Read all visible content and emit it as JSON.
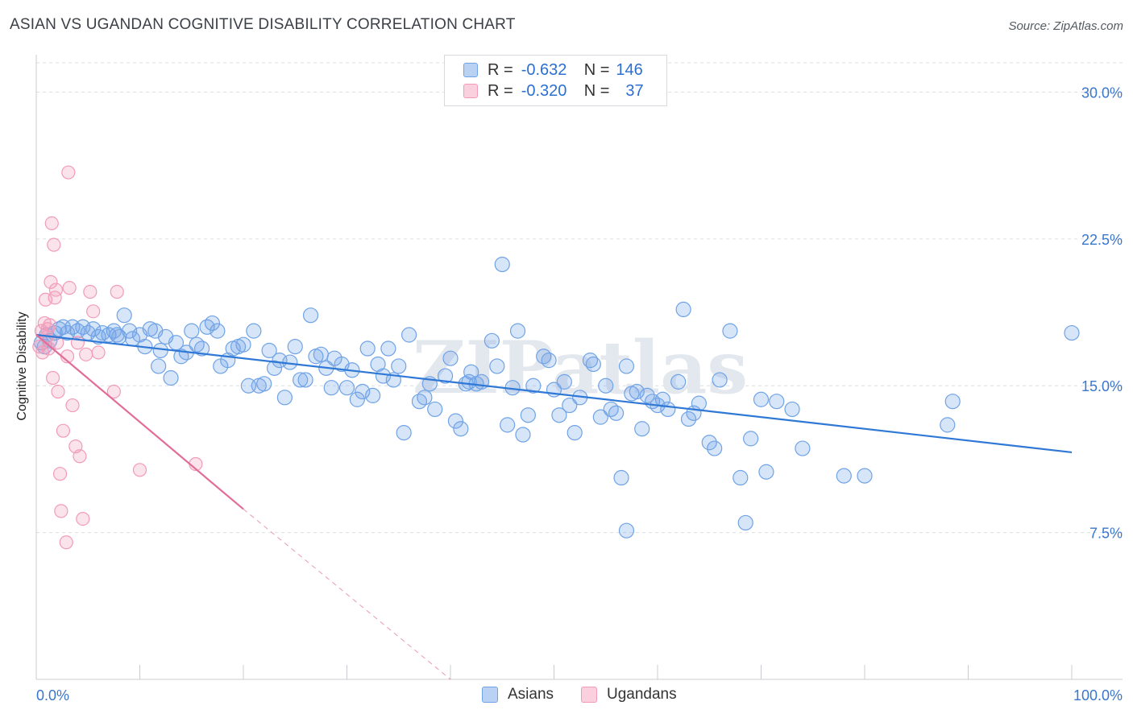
{
  "title": "ASIAN VS UGANDAN COGNITIVE DISABILITY CORRELATION CHART",
  "source": "Source: ZipAtlas.com",
  "watermark": "ZIPatlas",
  "colors": {
    "asian": "#6fa3e6",
    "asian_line": "#2f78d6",
    "ugandan": "#f29bb8",
    "ugandan_line": "#e26d98",
    "tick_text": "#3a76cc"
  },
  "legend_top": {
    "rows": [
      {
        "r_label": "R =",
        "r_value": "-0.632",
        "n_label": "N =",
        "n_value": "146"
      },
      {
        "r_label": "R =",
        "r_value": "-0.320",
        "n_label": "N =",
        "n_value": "37"
      }
    ]
  },
  "chart_data": {
    "type": "scatter",
    "title": "ASIAN VS UGANDAN COGNITIVE DISABILITY CORRELATION CHART",
    "xlabel": "",
    "ylabel": "Cognitive Disability",
    "xlim": [
      0,
      100
    ],
    "ylim": [
      0,
      31.5
    ],
    "x_tick_labels": [
      "0.0%",
      "100.0%"
    ],
    "y_ticks": [
      7.5,
      15.0,
      22.5,
      30.0
    ],
    "y_tick_labels": [
      "7.5%",
      "15.0%",
      "22.5%",
      "30.0%"
    ],
    "grid": "horizontal dashed",
    "legend_position": "bottom-center",
    "series": [
      {
        "name": "Asians",
        "stats": {
          "R": -0.632,
          "N": 146
        },
        "trend": {
          "x": [
            0,
            100
          ],
          "y": [
            17.6,
            11.6
          ]
        },
        "points": [
          [
            0.5,
            17.2
          ],
          [
            0.8,
            17.0
          ],
          [
            1.0,
            17.6
          ],
          [
            1.3,
            17.3
          ],
          [
            1.8,
            17.7
          ],
          [
            2.2,
            17.9
          ],
          [
            2.6,
            18.0
          ],
          [
            3.0,
            17.7
          ],
          [
            3.5,
            18.0
          ],
          [
            4.0,
            17.8
          ],
          [
            4.5,
            18.0
          ],
          [
            5.0,
            17.7
          ],
          [
            5.5,
            17.9
          ],
          [
            6.0,
            17.5
          ],
          [
            6.4,
            17.7
          ],
          [
            7.0,
            17.6
          ],
          [
            7.5,
            17.8
          ],
          [
            7.8,
            17.6
          ],
          [
            8.0,
            17.5
          ],
          [
            8.5,
            18.6
          ],
          [
            9.0,
            17.8
          ],
          [
            9.3,
            17.4
          ],
          [
            10.0,
            17.6
          ],
          [
            10.5,
            17.0
          ],
          [
            11.0,
            17.9
          ],
          [
            11.5,
            17.8
          ],
          [
            12.0,
            16.8
          ],
          [
            11.8,
            16.0
          ],
          [
            12.5,
            17.5
          ],
          [
            13.0,
            15.4
          ],
          [
            13.5,
            17.2
          ],
          [
            14.0,
            16.5
          ],
          [
            14.5,
            16.7
          ],
          [
            15.0,
            17.8
          ],
          [
            15.5,
            17.1
          ],
          [
            16.0,
            16.9
          ],
          [
            16.5,
            18.0
          ],
          [
            17.0,
            18.2
          ],
          [
            17.5,
            17.8
          ],
          [
            17.8,
            16.0
          ],
          [
            18.5,
            16.3
          ],
          [
            19.0,
            16.9
          ],
          [
            19.5,
            17.0
          ],
          [
            20.0,
            17.1
          ],
          [
            20.5,
            15.0
          ],
          [
            21.0,
            17.8
          ],
          [
            21.5,
            15.0
          ],
          [
            22.0,
            15.1
          ],
          [
            22.5,
            16.8
          ],
          [
            23.0,
            15.9
          ],
          [
            23.5,
            16.3
          ],
          [
            24.0,
            14.4
          ],
          [
            24.5,
            16.2
          ],
          [
            25.0,
            17.0
          ],
          [
            25.5,
            15.3
          ],
          [
            26.0,
            15.3
          ],
          [
            26.5,
            18.6
          ],
          [
            27.0,
            16.5
          ],
          [
            27.5,
            16.6
          ],
          [
            28.0,
            15.9
          ],
          [
            28.5,
            14.9
          ],
          [
            28.8,
            16.4
          ],
          [
            29.5,
            16.1
          ],
          [
            30.0,
            14.9
          ],
          [
            30.5,
            15.8
          ],
          [
            31.0,
            14.3
          ],
          [
            31.5,
            14.7
          ],
          [
            32.0,
            16.9
          ],
          [
            32.5,
            14.5
          ],
          [
            33.0,
            16.1
          ],
          [
            33.5,
            15.5
          ],
          [
            34.0,
            16.9
          ],
          [
            34.5,
            15.3
          ],
          [
            35.0,
            16.0
          ],
          [
            35.5,
            12.6
          ],
          [
            36.0,
            17.6
          ],
          [
            37.0,
            14.2
          ],
          [
            37.5,
            14.4
          ],
          [
            38.0,
            15.1
          ],
          [
            38.5,
            13.8
          ],
          [
            39.5,
            15.5
          ],
          [
            40.0,
            16.4
          ],
          [
            40.5,
            13.2
          ],
          [
            41.0,
            12.8
          ],
          [
            41.5,
            15.1
          ],
          [
            42.0,
            15.7
          ],
          [
            42.5,
            15.1
          ],
          [
            43.0,
            15.2
          ],
          [
            44.0,
            17.3
          ],
          [
            44.5,
            16.0
          ],
          [
            45.5,
            13.0
          ],
          [
            46.0,
            14.9
          ],
          [
            46.5,
            17.8
          ],
          [
            47.0,
            12.5
          ],
          [
            47.5,
            13.5
          ],
          [
            48.0,
            15.0
          ],
          [
            49.0,
            16.5
          ],
          [
            49.5,
            16.3
          ],
          [
            50.0,
            14.8
          ],
          [
            50.5,
            13.5
          ],
          [
            51.0,
            15.2
          ],
          [
            52.0,
            12.6
          ],
          [
            52.5,
            14.4
          ],
          [
            53.5,
            16.3
          ],
          [
            53.8,
            16.1
          ],
          [
            54.5,
            13.4
          ],
          [
            55.0,
            15.0
          ],
          [
            55.5,
            13.8
          ],
          [
            56.0,
            13.6
          ],
          [
            57.0,
            16.0
          ],
          [
            57.5,
            14.6
          ],
          [
            58.5,
            12.8
          ],
          [
            59.0,
            14.5
          ],
          [
            59.5,
            14.2
          ],
          [
            60.0,
            14.0
          ],
          [
            61.0,
            13.8
          ],
          [
            62.0,
            15.2
          ],
          [
            62.5,
            18.9
          ],
          [
            63.0,
            13.3
          ],
          [
            63.5,
            13.6
          ],
          [
            64.0,
            14.1
          ],
          [
            65.0,
            12.1
          ],
          [
            66.0,
            15.3
          ],
          [
            67.0,
            17.8
          ],
          [
            68.0,
            10.3
          ],
          [
            69.0,
            12.3
          ],
          [
            70.0,
            14.3
          ],
          [
            70.5,
            10.6
          ],
          [
            71.5,
            14.2
          ],
          [
            73.0,
            13.8
          ],
          [
            74.0,
            11.8
          ],
          [
            78.0,
            10.4
          ],
          [
            80.0,
            10.4
          ],
          [
            88.0,
            13.0
          ],
          [
            88.5,
            14.2
          ],
          [
            100.0,
            17.7
          ],
          [
            45.0,
            21.2
          ],
          [
            56.5,
            10.3
          ],
          [
            57.0,
            7.6
          ],
          [
            68.5,
            8.0
          ],
          [
            65.5,
            11.8
          ],
          [
            60.5,
            14.3
          ],
          [
            51.5,
            14.0
          ],
          [
            58.0,
            14.7
          ],
          [
            41.8,
            15.2
          ]
        ]
      },
      {
        "name": "Ugandans",
        "stats": {
          "R": -0.32,
          "N": 37
        },
        "trend": {
          "x": [
            0,
            20
          ],
          "y": [
            17.6,
            8.7
          ]
        },
        "trend_extension": {
          "x": [
            20,
            40
          ],
          "y": [
            8.7,
            0
          ]
        },
        "points": [
          [
            0.3,
            17.0
          ],
          [
            0.5,
            17.8
          ],
          [
            0.6,
            16.7
          ],
          [
            0.8,
            18.2
          ],
          [
            0.9,
            19.4
          ],
          [
            1.0,
            17.5
          ],
          [
            1.1,
            17.9
          ],
          [
            1.2,
            16.9
          ],
          [
            1.3,
            18.1
          ],
          [
            1.4,
            20.3
          ],
          [
            1.5,
            23.3
          ],
          [
            1.6,
            15.4
          ],
          [
            1.7,
            22.2
          ],
          [
            1.8,
            19.5
          ],
          [
            1.9,
            19.9
          ],
          [
            2.0,
            17.2
          ],
          [
            2.1,
            14.7
          ],
          [
            2.3,
            10.5
          ],
          [
            2.4,
            8.6
          ],
          [
            2.6,
            12.7
          ],
          [
            2.9,
            7.0
          ],
          [
            3.0,
            16.5
          ],
          [
            3.2,
            20.0
          ],
          [
            3.5,
            14.0
          ],
          [
            3.8,
            11.9
          ],
          [
            3.1,
            25.9
          ],
          [
            4.0,
            17.2
          ],
          [
            4.2,
            11.4
          ],
          [
            4.5,
            8.2
          ],
          [
            4.8,
            16.6
          ],
          [
            5.2,
            19.8
          ],
          [
            5.5,
            18.8
          ],
          [
            6.0,
            16.7
          ],
          [
            7.5,
            14.7
          ],
          [
            7.8,
            19.8
          ],
          [
            10.0,
            10.7
          ],
          [
            15.4,
            11.0
          ]
        ]
      }
    ]
  },
  "bottom_legend": {
    "items": [
      {
        "label": "Asians"
      },
      {
        "label": "Ugandans"
      }
    ]
  }
}
